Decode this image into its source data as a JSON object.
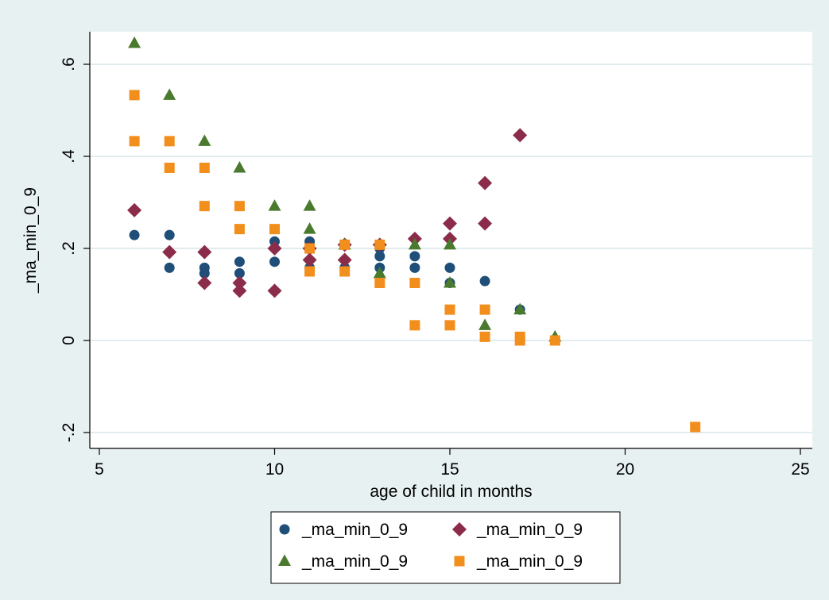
{
  "chart_data": {
    "type": "scatter",
    "title": "",
    "xlabel": "age of child in months",
    "ylabel": "_ma_min_0_9",
    "xlim": [
      5,
      25
    ],
    "ylim": [
      -0.2,
      0.6
    ],
    "x_ticks": [
      5,
      10,
      15,
      20,
      25
    ],
    "y_ticks": [
      -0.2,
      0,
      0.2,
      0.4,
      0.6
    ],
    "x_tick_labels": [
      "5",
      "10",
      "15",
      "20",
      "25"
    ],
    "y_tick_labels": [
      "-.2",
      "0",
      ".2",
      ".4",
      ".6"
    ],
    "grid": "horizontal",
    "legend_position": "bottom",
    "series": [
      {
        "name": "_ma_min_0_9",
        "marker": "circle",
        "color": "#1f4e79",
        "points": [
          [
            6,
            0.229
          ],
          [
            7,
            0.229
          ],
          [
            7,
            0.158
          ],
          [
            8,
            0.158
          ],
          [
            8,
            0.146
          ],
          [
            9,
            0.171
          ],
          [
            9,
            0.146
          ],
          [
            10,
            0.215
          ],
          [
            10,
            0.171
          ],
          [
            11,
            0.215
          ],
          [
            11,
            0.158
          ],
          [
            12,
            0.158
          ],
          [
            13,
            0.2
          ],
          [
            13,
            0.183
          ],
          [
            13,
            0.158
          ],
          [
            14,
            0.183
          ],
          [
            14,
            0.158
          ],
          [
            15,
            0.158
          ],
          [
            15,
            0.125
          ],
          [
            16,
            0.129
          ],
          [
            17,
            0.067
          ]
        ]
      },
      {
        "name": "_ma_min_0_9",
        "marker": "diamond",
        "color": "#8b2d4a",
        "points": [
          [
            6,
            0.283
          ],
          [
            7,
            0.192
          ],
          [
            8,
            0.192
          ],
          [
            8,
            0.125
          ],
          [
            9,
            0.125
          ],
          [
            9,
            0.108
          ],
          [
            10,
            0.2
          ],
          [
            10,
            0.108
          ],
          [
            11,
            0.2
          ],
          [
            11,
            0.175
          ],
          [
            12,
            0.208
          ],
          [
            12,
            0.175
          ],
          [
            13,
            0.208
          ],
          [
            14,
            0.221
          ],
          [
            15,
            0.254
          ],
          [
            15,
            0.221
          ],
          [
            16,
            0.342
          ],
          [
            16,
            0.254
          ],
          [
            17,
            0.446
          ]
        ]
      },
      {
        "name": "_ma_min_0_9",
        "marker": "triangle",
        "color": "#4a7a2e",
        "points": [
          [
            6,
            0.646
          ],
          [
            7,
            0.533
          ],
          [
            8,
            0.433
          ],
          [
            9,
            0.375
          ],
          [
            10,
            0.292
          ],
          [
            11,
            0.292
          ],
          [
            11,
            0.242
          ],
          [
            12,
            0.208
          ],
          [
            13,
            0.146
          ],
          [
            14,
            0.208
          ],
          [
            15,
            0.208
          ],
          [
            15,
            0.125
          ],
          [
            16,
            0.033
          ],
          [
            17,
            0.067
          ],
          [
            18,
            0.008
          ]
        ]
      },
      {
        "name": "_ma_min_0_9",
        "marker": "square",
        "color": "#f28e1c",
        "points": [
          [
            6,
            0.533
          ],
          [
            6,
            0.433
          ],
          [
            7,
            0.433
          ],
          [
            7,
            0.375
          ],
          [
            8,
            0.375
          ],
          [
            8,
            0.292
          ],
          [
            9,
            0.292
          ],
          [
            9,
            0.242
          ],
          [
            10,
            0.242
          ],
          [
            11,
            0.2
          ],
          [
            11,
            0.15
          ],
          [
            12,
            0.208
          ],
          [
            12,
            0.15
          ],
          [
            13,
            0.208
          ],
          [
            13,
            0.125
          ],
          [
            14,
            0.125
          ],
          [
            14,
            0.033
          ],
          [
            15,
            0.067
          ],
          [
            15,
            0.033
          ],
          [
            16,
            0.067
          ],
          [
            16,
            0.008
          ],
          [
            17,
            0.008
          ],
          [
            17,
            0
          ],
          [
            18,
            0
          ],
          [
            22,
            -0.188
          ]
        ]
      }
    ]
  }
}
